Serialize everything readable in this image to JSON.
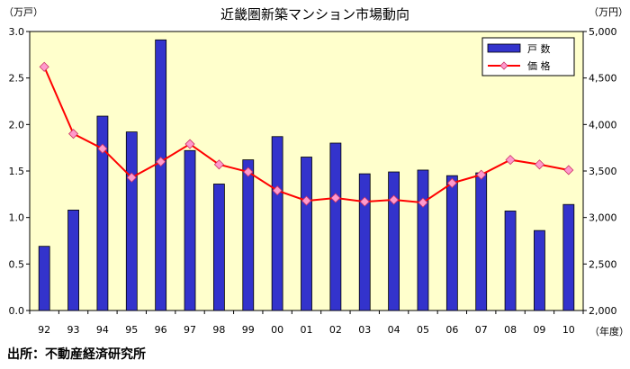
{
  "chart_data": {
    "type": "bar",
    "title": "近畿圏新築マンション市場動向",
    "y_left_unit": "（万戸）",
    "y_right_unit": "（万円）",
    "x_unit": "（年度）",
    "categories": [
      "92",
      "93",
      "94",
      "95",
      "96",
      "97",
      "98",
      "99",
      "00",
      "01",
      "02",
      "03",
      "04",
      "05",
      "06",
      "07",
      "08",
      "09",
      "10"
    ],
    "y_left_ticks": [
      "0.0",
      "0.5",
      "1.0",
      "1.5",
      "2.0",
      "2.5",
      "3.0"
    ],
    "y_right_ticks": [
      "2,000",
      "2,500",
      "3,000",
      "3,500",
      "4,000",
      "4,500",
      "5,000"
    ],
    "ylim_left": [
      0,
      3.0
    ],
    "ylim_right": [
      2000,
      5000
    ],
    "series": [
      {
        "name": "戸 数",
        "type": "bar",
        "axis": "left",
        "color": "#3333cc",
        "values": [
          0.69,
          1.08,
          2.09,
          1.92,
          2.91,
          1.72,
          1.36,
          1.62,
          1.87,
          1.65,
          1.8,
          1.47,
          1.49,
          1.51,
          1.45,
          1.48,
          1.07,
          0.86,
          1.14
        ]
      },
      {
        "name": "価 格",
        "type": "line",
        "axis": "right",
        "color": "#ff0000",
        "marker_color": "#ff99cc",
        "values": [
          4620,
          3900,
          3740,
          3430,
          3600,
          3790,
          3570,
          3490,
          3290,
          3180,
          3210,
          3170,
          3190,
          3160,
          3370,
          3460,
          3620,
          3570,
          3510
        ]
      }
    ],
    "legend_position": "top-right",
    "grid": false,
    "plot_background": "#ffffcc"
  },
  "source_note": "出所：不動産経済研究所"
}
